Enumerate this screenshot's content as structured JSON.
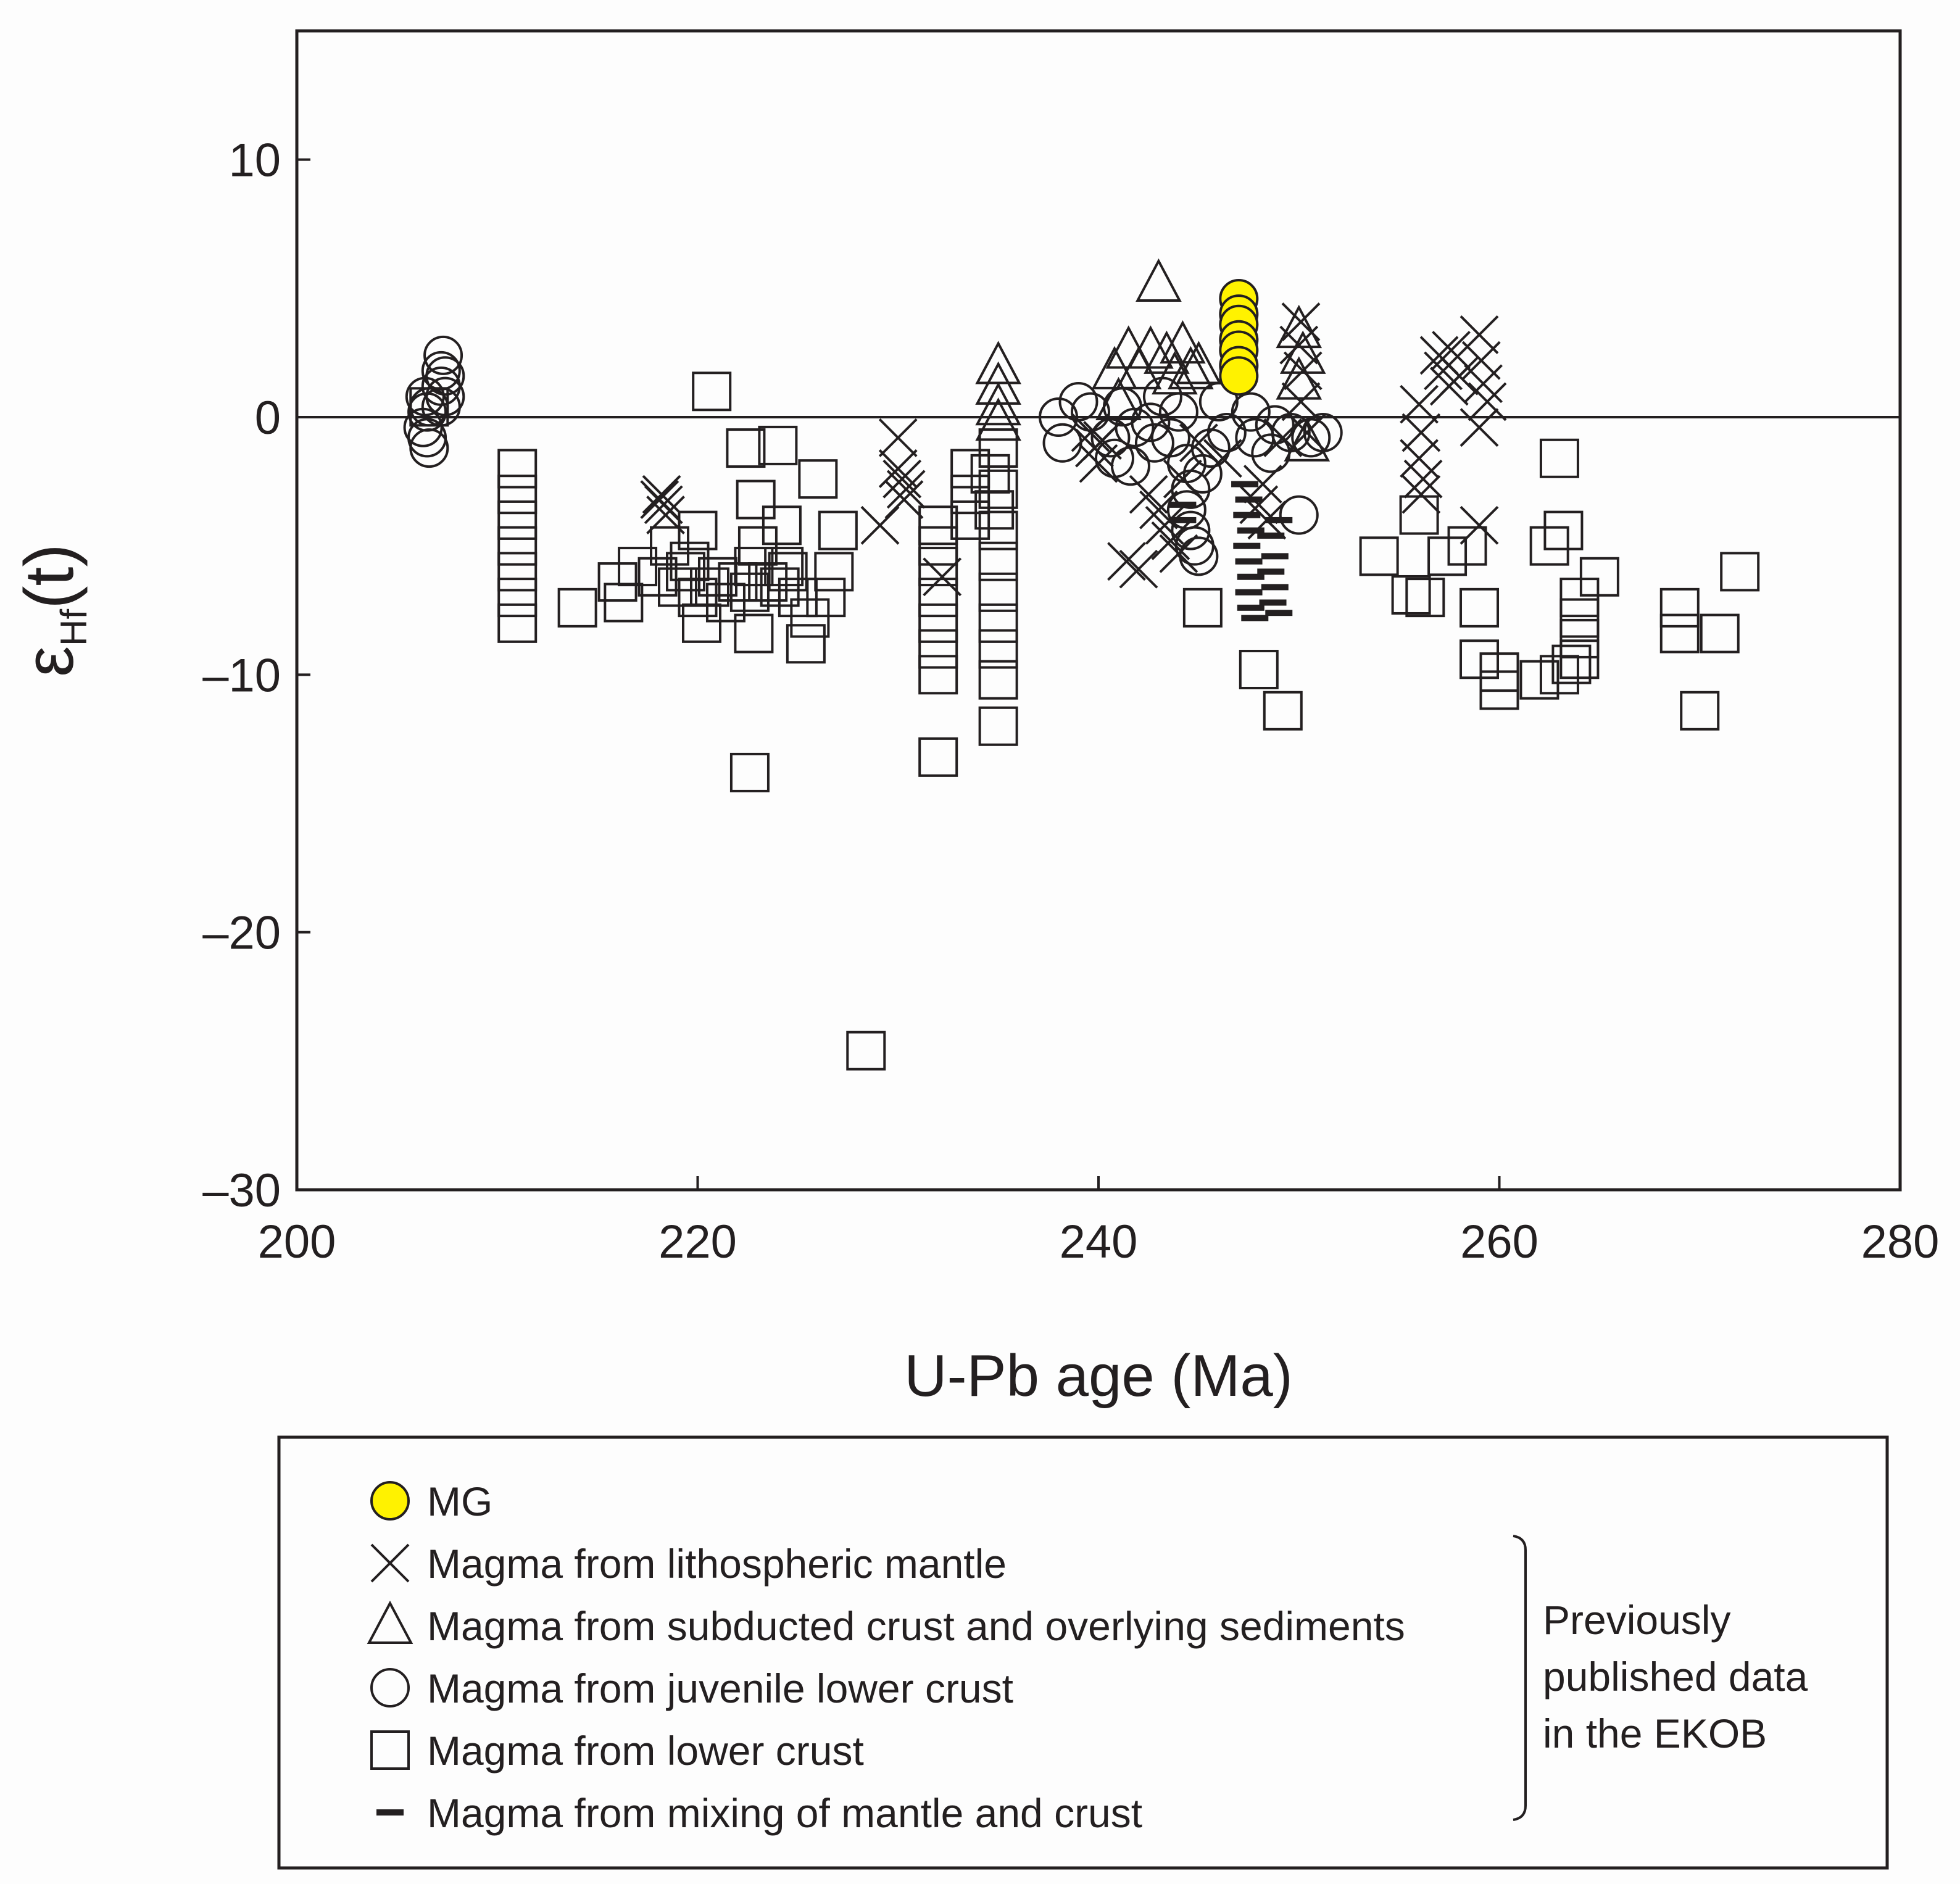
{
  "chart_data": {
    "type": "scatter",
    "title": "",
    "xlabel": "U-Pb age (Ma)",
    "ylabel_main": "ε",
    "ylabel_sub": "Hf",
    "ylabel_tail": "(t)",
    "xlim": [
      200,
      280
    ],
    "ylim": [
      -30,
      15
    ],
    "xticks": [
      200,
      220,
      240,
      260,
      280
    ],
    "yticks": [
      10,
      0,
      -10,
      -20,
      -30
    ],
    "ytick_labels": [
      "10",
      "0",
      "–10",
      "–20",
      "–30"
    ],
    "reference_line_y": 0,
    "legend_placement": "below",
    "series": [
      {
        "name": "MG",
        "marker": "filled-circle",
        "color": "#fff200",
        "points": [
          [
            247.0,
            4.6
          ],
          [
            247.0,
            4.0
          ],
          [
            247.0,
            3.6
          ],
          [
            247.0,
            3.0
          ],
          [
            247.0,
            2.6
          ],
          [
            247.0,
            2.0
          ],
          [
            247.0,
            1.6
          ]
        ]
      },
      {
        "name": "Magma from lithospheric mantle",
        "marker": "x",
        "points": [
          [
            218.2,
            -3.0
          ],
          [
            218.3,
            -3.4
          ],
          [
            218.4,
            -3.8
          ],
          [
            218.1,
            -3.2
          ],
          [
            229.1,
            -4.2
          ],
          [
            230.0,
            -0.8
          ],
          [
            230.0,
            -2.0
          ],
          [
            230.2,
            -2.4
          ],
          [
            230.4,
            -2.8
          ],
          [
            230.3,
            -3.2
          ],
          [
            232.2,
            -6.2
          ],
          [
            239.6,
            -0.6
          ],
          [
            239.8,
            -1.2
          ],
          [
            240.0,
            -1.8
          ],
          [
            240.2,
            -0.9
          ],
          [
            241.4,
            -5.6
          ],
          [
            242.0,
            -5.9
          ],
          [
            242.5,
            -3.0
          ],
          [
            243.0,
            -3.6
          ],
          [
            243.3,
            -4.2
          ],
          [
            243.6,
            -4.8
          ],
          [
            244.0,
            -5.3
          ],
          [
            244.2,
            -2.4
          ],
          [
            245.0,
            -1.0
          ],
          [
            246.2,
            -1.6
          ],
          [
            248.2,
            -2.6
          ],
          [
            248.4,
            -4.0
          ],
          [
            248.0,
            -3.4
          ],
          [
            249.2,
            -0.8
          ],
          [
            250.1,
            3.7
          ],
          [
            250.0,
            2.8
          ],
          [
            250.2,
            1.8
          ],
          [
            250.1,
            0.6
          ],
          [
            250.4,
            -0.6
          ],
          [
            256.0,
            0.5
          ],
          [
            256.1,
            -0.6
          ],
          [
            256.0,
            -1.6
          ],
          [
            256.2,
            -2.4
          ],
          [
            256.1,
            -3.0
          ],
          [
            257.0,
            2.4
          ],
          [
            257.2,
            1.8
          ],
          [
            257.5,
            1.2
          ],
          [
            257.6,
            2.6
          ],
          [
            258.0,
            1.6
          ],
          [
            259.0,
            3.2
          ],
          [
            259.1,
            2.2
          ],
          [
            259.2,
            1.3
          ],
          [
            259.4,
            0.6
          ],
          [
            259.0,
            -0.4
          ],
          [
            259.0,
            -4.2
          ]
        ]
      },
      {
        "name": "Magma from subducted crust and overlying sediments",
        "marker": "triangle",
        "points": [
          [
            235.0,
            2.0
          ],
          [
            235.0,
            1.2
          ],
          [
            235.0,
            0.4
          ],
          [
            235.0,
            -0.2
          ],
          [
            243.0,
            5.2
          ],
          [
            241.5,
            2.6
          ],
          [
            242.0,
            1.8
          ],
          [
            242.6,
            2.6
          ],
          [
            243.4,
            2.4
          ],
          [
            243.8,
            1.6
          ],
          [
            244.2,
            2.8
          ],
          [
            244.6,
            1.8
          ],
          [
            245.0,
            2.0
          ],
          [
            240.8,
            1.8
          ],
          [
            241.0,
            0.6
          ],
          [
            250.0,
            3.4
          ],
          [
            250.2,
            2.4
          ],
          [
            250.0,
            1.4
          ],
          [
            250.4,
            -1.0
          ]
        ]
      },
      {
        "name": "Magma from juvenile lower crust",
        "marker": "circle",
        "points": [
          [
            206.4,
            0.8
          ],
          [
            206.5,
            0.2
          ],
          [
            206.3,
            -0.4
          ],
          [
            206.5,
            -0.8
          ],
          [
            206.6,
            -1.2
          ],
          [
            206.6,
            0.4
          ],
          [
            207.3,
            2.4
          ],
          [
            207.2,
            1.8
          ],
          [
            207.2,
            1.2
          ],
          [
            207.4,
            0.8
          ],
          [
            207.2,
            0.4
          ],
          [
            207.4,
            1.6
          ],
          [
            238.0,
            0.0
          ],
          [
            238.2,
            -1.0
          ],
          [
            239.0,
            0.6
          ],
          [
            239.6,
            0.2
          ],
          [
            240.6,
            -0.8
          ],
          [
            240.8,
            -1.6
          ],
          [
            241.2,
            0.4
          ],
          [
            241.8,
            -0.4
          ],
          [
            241.6,
            -1.9
          ],
          [
            242.6,
            -0.2
          ],
          [
            242.8,
            -1.0
          ],
          [
            243.2,
            0.8
          ],
          [
            243.6,
            -0.8
          ],
          [
            244.0,
            0.2
          ],
          [
            244.4,
            -1.8
          ],
          [
            244.6,
            -2.8
          ],
          [
            244.4,
            -3.6
          ],
          [
            244.6,
            -4.4
          ],
          [
            244.8,
            -5.0
          ],
          [
            245.0,
            -5.4
          ],
          [
            245.2,
            -2.2
          ],
          [
            245.6,
            -1.2
          ],
          [
            246.0,
            0.6
          ],
          [
            246.4,
            -0.6
          ],
          [
            247.6,
            0.2
          ],
          [
            247.8,
            -0.8
          ],
          [
            248.6,
            -1.4
          ],
          [
            248.8,
            -0.3
          ],
          [
            249.6,
            -0.6
          ],
          [
            250.6,
            -0.8
          ],
          [
            251.2,
            -0.6
          ],
          [
            250.0,
            -3.8
          ]
        ]
      },
      {
        "name": "Magma from lower crust",
        "marker": "square",
        "points": [
          [
            206.6,
            0.4
          ],
          [
            211.0,
            -2.0
          ],
          [
            211.0,
            -3.0
          ],
          [
            211.0,
            -4.0
          ],
          [
            211.0,
            -5.0
          ],
          [
            211.0,
            -6.0
          ],
          [
            211.0,
            -7.0
          ],
          [
            211.0,
            -8.0
          ],
          [
            214.0,
            -7.4
          ],
          [
            216.0,
            -6.4
          ],
          [
            216.3,
            -7.2
          ],
          [
            217.0,
            -5.8
          ],
          [
            218.0,
            -6.2
          ],
          [
            218.6,
            -5.0
          ],
          [
            219.0,
            -6.6
          ],
          [
            219.4,
            -6.0
          ],
          [
            219.6,
            -5.6
          ],
          [
            220.0,
            -7.0
          ],
          [
            220.2,
            -8.0
          ],
          [
            220.0,
            -4.4
          ],
          [
            220.6,
            -6.6
          ],
          [
            220.7,
            1.0
          ],
          [
            221.0,
            -6.2
          ],
          [
            221.4,
            -7.2
          ],
          [
            222.0,
            -6.4
          ],
          [
            222.4,
            -1.2
          ],
          [
            222.8,
            -5.8
          ],
          [
            222.9,
            -3.2
          ],
          [
            222.6,
            -6.8
          ],
          [
            222.8,
            -8.4
          ],
          [
            223.0,
            -5.0
          ],
          [
            223.5,
            -6.4
          ],
          [
            222.6,
            -13.8
          ],
          [
            224.0,
            -1.1
          ],
          [
            224.2,
            -4.2
          ],
          [
            224.3,
            -5.8
          ],
          [
            224.5,
            -6.0
          ],
          [
            224.1,
            -6.6
          ],
          [
            225.0,
            -7.0
          ],
          [
            225.4,
            -8.8
          ],
          [
            225.6,
            -7.8
          ],
          [
            226.0,
            -2.4
          ],
          [
            226.4,
            -7.0
          ],
          [
            226.8,
            -6.0
          ],
          [
            227.0,
            -4.4
          ],
          [
            228.4,
            -24.6
          ],
          [
            232.0,
            -4.2
          ],
          [
            232.0,
            -5.0
          ],
          [
            232.0,
            -5.8
          ],
          [
            232.0,
            -7.0
          ],
          [
            232.0,
            -8.0
          ],
          [
            232.0,
            -9.0
          ],
          [
            232.0,
            -10.0
          ],
          [
            232.0,
            -13.2
          ],
          [
            233.6,
            -2.0
          ],
          [
            233.6,
            -3.0
          ],
          [
            233.6,
            -4.0
          ],
          [
            234.6,
            -2.2
          ],
          [
            234.8,
            -3.6
          ],
          [
            235.0,
            -1.2
          ],
          [
            235.0,
            -2.8
          ],
          [
            235.0,
            -4.4
          ],
          [
            235.0,
            -5.6
          ],
          [
            235.0,
            -6.8
          ],
          [
            235.0,
            -8.0
          ],
          [
            235.0,
            -9.0
          ],
          [
            235.0,
            -10.2
          ],
          [
            235.0,
            -12.0
          ],
          [
            245.2,
            -7.4
          ],
          [
            248.0,
            -9.8
          ],
          [
            249.2,
            -11.4
          ],
          [
            254.0,
            -5.4
          ],
          [
            255.6,
            -6.9
          ],
          [
            256.0,
            -3.8
          ],
          [
            256.3,
            -7.0
          ],
          [
            257.4,
            -5.4
          ],
          [
            258.4,
            -5.0
          ],
          [
            259.0,
            -7.4
          ],
          [
            259.0,
            -9.4
          ],
          [
            260.0,
            -9.9
          ],
          [
            260.0,
            -10.6
          ],
          [
            262.0,
            -10.2
          ],
          [
            262.5,
            -5.0
          ],
          [
            263.0,
            -10.0
          ],
          [
            263.6,
            -9.6
          ],
          [
            263.2,
            -4.4
          ],
          [
            263.0,
            -1.6
          ],
          [
            264.0,
            -7.0
          ],
          [
            264.0,
            -7.8
          ],
          [
            264.0,
            -8.6
          ],
          [
            264.0,
            -9.4
          ],
          [
            265.0,
            -6.2
          ],
          [
            269.0,
            -7.4
          ],
          [
            269.0,
            -8.4
          ],
          [
            270.0,
            -11.4
          ],
          [
            271.0,
            -8.4
          ],
          [
            272.0,
            -6.0
          ]
        ]
      },
      {
        "name": "Magma from mixing of mantle and crust",
        "marker": "dash",
        "points": [
          [
            244.2,
            -3.4
          ],
          [
            244.2,
            -4.0
          ],
          [
            247.3,
            -2.6
          ],
          [
            247.5,
            -3.2
          ],
          [
            247.4,
            -3.8
          ],
          [
            247.6,
            -4.4
          ],
          [
            247.4,
            -5.0
          ],
          [
            247.5,
            -5.6
          ],
          [
            247.6,
            -6.2
          ],
          [
            247.5,
            -6.8
          ],
          [
            247.6,
            -7.4
          ],
          [
            247.8,
            -7.8
          ],
          [
            248.6,
            -4.6
          ],
          [
            248.8,
            -5.4
          ],
          [
            248.6,
            -6.0
          ],
          [
            248.8,
            -6.6
          ],
          [
            248.7,
            -7.2
          ],
          [
            249.0,
            -7.6
          ],
          [
            249.0,
            -4.0
          ]
        ]
      }
    ]
  },
  "legend": {
    "items": [
      {
        "marker": "filled-circle",
        "label": "MG"
      },
      {
        "marker": "x",
        "label": "Magma from lithospheric mantle"
      },
      {
        "marker": "triangle",
        "label": "Magma from subducted crust and overlying sediments"
      },
      {
        "marker": "circle",
        "label": "Magma from juvenile lower crust"
      },
      {
        "marker": "square",
        "label": "Magma from lower crust"
      },
      {
        "marker": "dash",
        "label": "Magma from mixing of mantle and crust"
      }
    ],
    "bracket_label_lines": [
      "Previously",
      "published data",
      "in the EKOB"
    ]
  }
}
